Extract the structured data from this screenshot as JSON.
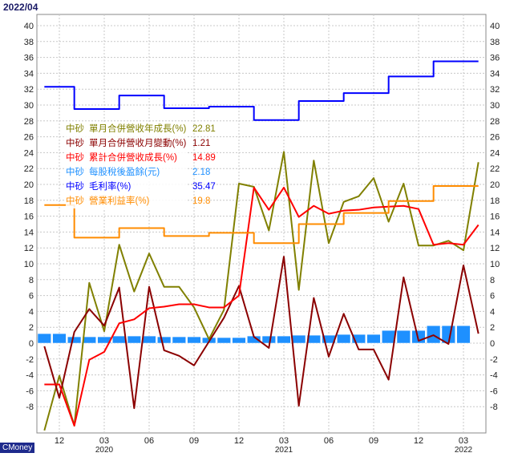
{
  "header": {
    "date": "2022/04"
  },
  "brand": "CMoney",
  "colors": {
    "bg": "#ffffff",
    "grid": "#bbbbbb",
    "revenue_yoy": "#808000",
    "revenue_mom": "#8b0000",
    "cum_revenue_yoy": "#ff0000",
    "eps": "#1e90ff",
    "gross_margin": "#0000ff",
    "operating_margin": "#ff8c00"
  },
  "legend": [
    {
      "company": "中砂",
      "name": "單月合併營收年成長(%)",
      "value": "22.81",
      "color": "#808000"
    },
    {
      "company": "中砂",
      "name": "單月合併營收月變動(%)",
      "value": "1.21",
      "color": "#8b0000"
    },
    {
      "company": "中砂",
      "name": "累計合併營收成長(%)",
      "value": "14.89",
      "color": "#ff0000"
    },
    {
      "company": "中砂",
      "name": "每股稅後盈餘(元)",
      "value": "2.18",
      "color": "#1e90ff"
    },
    {
      "company": "中砂",
      "name": "毛利率(%)",
      "value": "35.47",
      "color": "#0000ff"
    },
    {
      "company": "中砂",
      "name": "營業利益率(%)",
      "value": "19.8",
      "color": "#ff8c00"
    }
  ],
  "chart_data": {
    "type": "line",
    "title": "",
    "xlabel": "",
    "ylabel": "",
    "ylim": [
      -10,
      40
    ],
    "yticks": [
      40,
      38,
      36,
      34,
      32,
      30,
      28,
      26,
      24,
      22,
      20,
      18,
      16,
      14,
      12,
      10,
      8,
      6,
      4,
      2,
      0,
      -2,
      -4,
      -6,
      -8
    ],
    "x_labels": [
      {
        "i": 1,
        "month": "12"
      },
      {
        "i": 4,
        "month": "03",
        "year": "2020"
      },
      {
        "i": 7,
        "month": "06"
      },
      {
        "i": 10,
        "month": "09"
      },
      {
        "i": 13,
        "month": "12"
      },
      {
        "i": 16,
        "month": "03",
        "year": "2021"
      },
      {
        "i": 19,
        "month": "06"
      },
      {
        "i": 22,
        "month": "09"
      },
      {
        "i": 25,
        "month": "12"
      },
      {
        "i": 28,
        "month": "03",
        "year": "2022"
      }
    ],
    "n_points": 30,
    "series": [
      {
        "name": "單月合併營收年成長(%)",
        "kind": "line",
        "color": "#808000",
        "values": [
          -11,
          -4.1,
          -10.4,
          7.6,
          1.5,
          12.4,
          6.5,
          11.3,
          7.1,
          7.1,
          4.5,
          0.5,
          4.2,
          20.1,
          19.7,
          14.2,
          24.1,
          6.7,
          23.0,
          12.6,
          17.8,
          18.5,
          20.8,
          15.3,
          20.1,
          12.3,
          12.3,
          12.9,
          11.7,
          22.8
        ]
      },
      {
        "name": "單月合併營收月變動(%)",
        "kind": "line",
        "color": "#8b0000",
        "values": [
          -0.4,
          -6.9,
          1.4,
          4.3,
          2.2,
          7.0,
          -8.2,
          7.1,
          -0.9,
          -1.6,
          -2.8,
          0.2,
          3.2,
          7.2,
          0.8,
          -0.6,
          10.9,
          -7.9,
          5.7,
          -1.7,
          3.7,
          -0.8,
          -0.8,
          -4.6,
          8.3,
          0.3,
          1.0,
          -0.1,
          9.8,
          1.2
        ]
      },
      {
        "name": "累計合併營收成長(%)",
        "kind": "line",
        "color": "#ff0000",
        "values": [
          -5.2,
          -5.2,
          -10.4,
          -2.1,
          -1.1,
          2.5,
          3.0,
          4.4,
          4.6,
          4.9,
          4.9,
          4.5,
          4.5,
          6.0,
          19.6,
          16.8,
          19.6,
          15.9,
          17.3,
          16.3,
          16.7,
          16.8,
          17.1,
          17.2,
          17.3,
          16.9,
          12.4,
          12.6,
          12.4,
          14.9
        ]
      },
      {
        "name": "每股稅後盈餘(元)",
        "kind": "bar",
        "color": "#1e90ff",
        "values": [
          1.2,
          1.2,
          0.8,
          0.8,
          0.8,
          0.9,
          0.9,
          0.9,
          0.8,
          0.8,
          0.8,
          0.7,
          0.7,
          0.7,
          0.9,
          0.9,
          0.9,
          1.0,
          1.0,
          1.0,
          1.1,
          1.1,
          1.1,
          1.6,
          1.6,
          1.6,
          2.2,
          2.2,
          2.2
        ]
      },
      {
        "name": "毛利率(%)",
        "kind": "step",
        "color": "#0000ff",
        "values": [
          32.3,
          32.3,
          29.5,
          29.5,
          29.5,
          31.2,
          31.2,
          31.2,
          29.6,
          29.6,
          29.6,
          29.8,
          29.8,
          29.8,
          28.1,
          28.1,
          28.1,
          30.5,
          30.5,
          30.5,
          31.5,
          31.5,
          31.5,
          33.6,
          33.6,
          33.6,
          35.5,
          35.5,
          35.5
        ]
      },
      {
        "name": "營業利益率(%)",
        "kind": "step",
        "color": "#ff8c00",
        "values": [
          17.4,
          17.4,
          13.3,
          13.3,
          13.3,
          14.5,
          14.5,
          14.5,
          13.5,
          13.5,
          13.5,
          13.9,
          13.9,
          13.9,
          12.6,
          12.6,
          12.6,
          15.0,
          15.0,
          15.0,
          16.4,
          16.4,
          16.4,
          17.9,
          17.9,
          17.9,
          19.8,
          19.8,
          19.8
        ]
      }
    ]
  }
}
